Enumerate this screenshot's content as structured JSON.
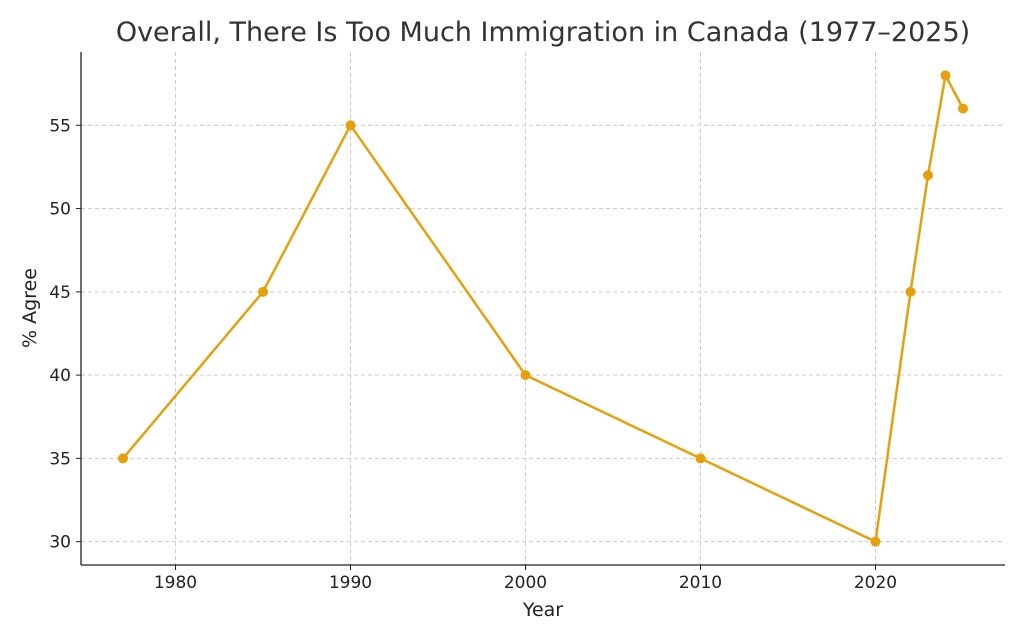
{
  "chart_data": {
    "type": "line",
    "title": "Overall, There Is Too Much Immigration in Canada (1977–2025)",
    "xlabel": "Year",
    "ylabel": "% Agree",
    "x": [
      1977,
      1985,
      1990,
      2000,
      2010,
      2020,
      2022,
      2023,
      2024,
      2025
    ],
    "series": [
      {
        "name": "% Agree",
        "values": [
          35,
          45,
          55,
          40,
          35,
          30,
          45,
          52,
          58,
          56
        ],
        "color": "#E5A00D"
      }
    ],
    "xticks": [
      1980,
      1990,
      2000,
      2010,
      2020
    ],
    "yticks": [
      30,
      35,
      40,
      45,
      50,
      55
    ],
    "xlim": [
      1974.6,
      2027.4
    ],
    "ylim": [
      28.6,
      59.4
    ],
    "grid": true,
    "legend": "none"
  }
}
